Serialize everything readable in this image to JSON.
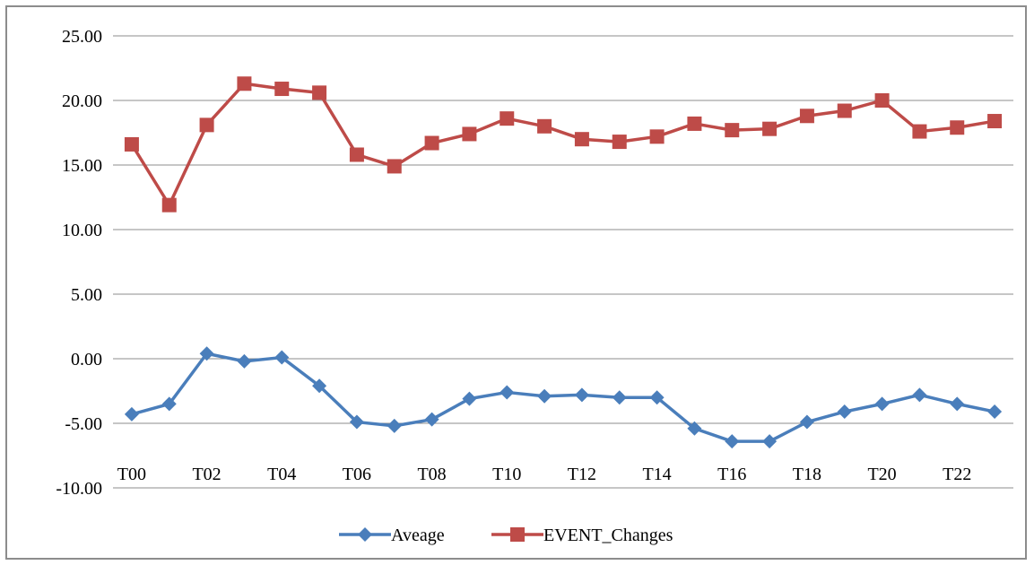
{
  "chart_data": {
    "type": "line",
    "title": "",
    "xlabel": "",
    "ylabel": "",
    "ylim": [
      -10,
      25
    ],
    "y_ticks": [
      25,
      20,
      15,
      10,
      5,
      0,
      -5,
      -10
    ],
    "y_tick_labels": [
      "25.00",
      "20.00",
      "15.00",
      "10.00",
      "5.00",
      "0.00",
      "-5.00",
      "-10.00"
    ],
    "x_tick_labels": [
      "T00",
      "T02",
      "T04",
      "T06",
      "T08",
      "T10",
      "T12",
      "T14",
      "T16",
      "T18",
      "T20",
      "T22"
    ],
    "categories": [
      "T00",
      "T01",
      "T02",
      "T03",
      "T04",
      "T05",
      "T06",
      "T07",
      "T08",
      "T09",
      "T10",
      "T11",
      "T12",
      "T13",
      "T14",
      "T15",
      "T16",
      "T17",
      "T18",
      "T19",
      "T20",
      "T21",
      "T22",
      "T23"
    ],
    "grid": true,
    "legend_position": "bottom",
    "series": [
      {
        "name": "Aveage",
        "color": "#4a7ebb",
        "marker": "diamond",
        "values": [
          -4.3,
          -3.5,
          0.4,
          -0.2,
          0.1,
          -2.1,
          -4.9,
          -5.2,
          -4.7,
          -3.1,
          -2.6,
          -2.9,
          -2.8,
          -3.0,
          -3.0,
          -5.4,
          -6.4,
          -6.4,
          -4.9,
          -4.1,
          -3.5,
          -2.8,
          -3.5,
          -4.1
        ]
      },
      {
        "name": "EVENT_Changes",
        "color": "#be4b48",
        "marker": "square",
        "values": [
          16.6,
          11.9,
          18.1,
          21.3,
          20.9,
          20.6,
          15.8,
          14.9,
          16.7,
          17.4,
          18.6,
          18.0,
          17.0,
          16.8,
          17.2,
          18.2,
          17.7,
          17.8,
          18.8,
          19.2,
          20.0,
          17.6,
          17.9,
          18.4
        ]
      }
    ]
  }
}
